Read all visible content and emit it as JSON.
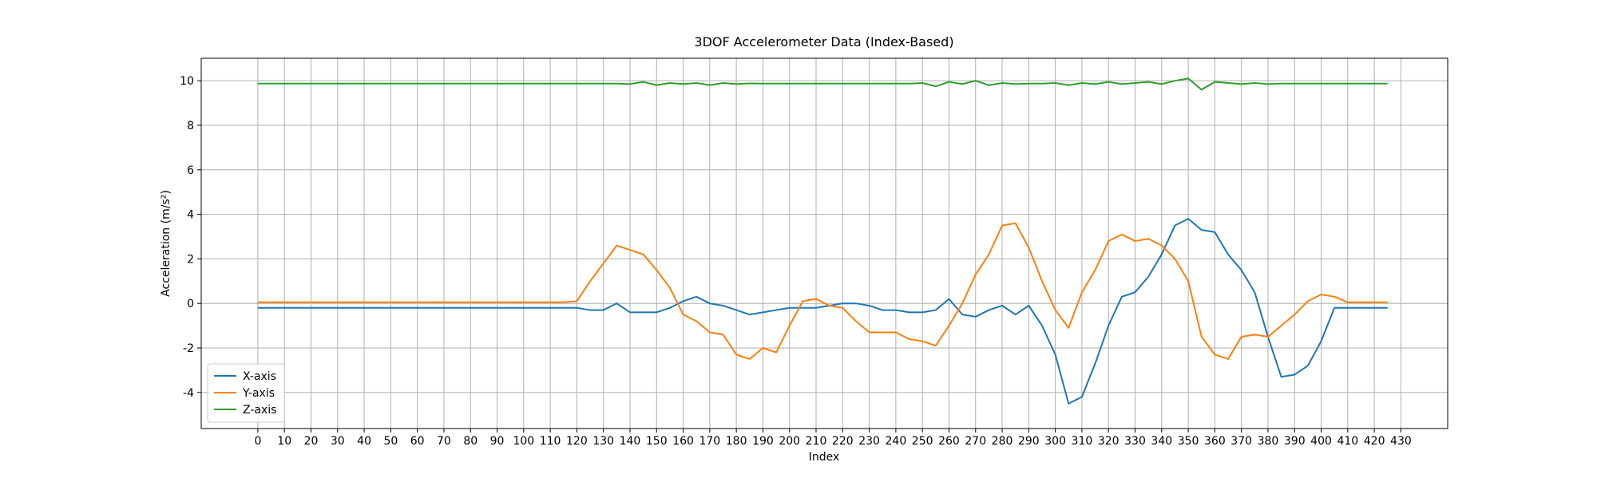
{
  "chart_data": {
    "type": "line",
    "title": "3DOF Accelerometer Data (Index-Based)",
    "x_label": "Index",
    "y_label": "Acceleration (m/s²)",
    "x": [
      0,
      5,
      10,
      15,
      20,
      25,
      30,
      35,
      40,
      45,
      50,
      55,
      60,
      65,
      70,
      75,
      80,
      85,
      90,
      95,
      100,
      105,
      110,
      115,
      120,
      125,
      130,
      135,
      140,
      145,
      150,
      155,
      160,
      165,
      170,
      175,
      180,
      185,
      190,
      195,
      200,
      205,
      210,
      215,
      220,
      225,
      230,
      235,
      240,
      245,
      250,
      255,
      260,
      265,
      270,
      275,
      280,
      285,
      290,
      295,
      300,
      305,
      310,
      315,
      320,
      325,
      330,
      335,
      340,
      345,
      350,
      355,
      360,
      365,
      370,
      375,
      380,
      385,
      390,
      395,
      400,
      405,
      410,
      415,
      420,
      425
    ],
    "series": [
      {
        "name": "X-axis",
        "color": "#1f77b4",
        "values": [
          -0.2,
          -0.2,
          -0.2,
          -0.2,
          -0.2,
          -0.2,
          -0.2,
          -0.2,
          -0.2,
          -0.2,
          -0.2,
          -0.2,
          -0.2,
          -0.2,
          -0.2,
          -0.2,
          -0.2,
          -0.2,
          -0.2,
          -0.2,
          -0.2,
          -0.2,
          -0.2,
          -0.2,
          -0.2,
          -0.3,
          -0.3,
          0.0,
          -0.4,
          -0.4,
          -0.4,
          -0.2,
          0.1,
          0.3,
          0.0,
          -0.1,
          -0.3,
          -0.5,
          -0.4,
          -0.3,
          -0.2,
          -0.2,
          -0.2,
          -0.1,
          0.0,
          0.0,
          -0.1,
          -0.3,
          -0.3,
          -0.4,
          -0.4,
          -0.3,
          0.2,
          -0.5,
          -0.6,
          -0.3,
          -0.1,
          -0.5,
          -0.1,
          -1.0,
          -2.3,
          -4.5,
          -4.2,
          -2.7,
          -1.0,
          0.3,
          0.5,
          1.2,
          2.2,
          3.5,
          3.8,
          3.3,
          3.2,
          2.2,
          1.5,
          0.5,
          -1.5,
          -3.3,
          -3.2,
          -2.8,
          -1.7,
          -0.2,
          -0.2,
          -0.2,
          -0.2,
          -0.2
        ]
      },
      {
        "name": "Y-axis",
        "color": "#ff7f0e",
        "values": [
          0.05,
          0.05,
          0.05,
          0.05,
          0.05,
          0.05,
          0.05,
          0.05,
          0.05,
          0.05,
          0.05,
          0.05,
          0.05,
          0.05,
          0.05,
          0.05,
          0.05,
          0.05,
          0.05,
          0.05,
          0.05,
          0.05,
          0.05,
          0.05,
          0.1,
          1.0,
          1.8,
          2.6,
          2.4,
          2.2,
          1.5,
          0.7,
          -0.5,
          -0.8,
          -1.3,
          -1.4,
          -2.3,
          -2.5,
          -2.0,
          -2.2,
          -1.0,
          0.1,
          0.2,
          -0.1,
          -0.2,
          -0.8,
          -1.3,
          -1.3,
          -1.3,
          -1.6,
          -1.7,
          -1.9,
          -1.0,
          0.0,
          1.3,
          2.2,
          3.5,
          3.6,
          2.5,
          1.0,
          -0.3,
          -1.1,
          0.5,
          1.5,
          2.8,
          3.1,
          2.8,
          2.9,
          2.6,
          2.0,
          1.0,
          -1.5,
          -2.3,
          -2.5,
          -1.5,
          -1.4,
          -1.5,
          -1.0,
          -0.5,
          0.1,
          0.4,
          0.3,
          0.05,
          0.05,
          0.05,
          0.05
        ]
      },
      {
        "name": "Z-axis",
        "color": "#2ca02c",
        "values": [
          9.87,
          9.87,
          9.87,
          9.87,
          9.87,
          9.87,
          9.87,
          9.87,
          9.87,
          9.87,
          9.87,
          9.87,
          9.87,
          9.87,
          9.87,
          9.87,
          9.87,
          9.87,
          9.87,
          9.87,
          9.87,
          9.87,
          9.87,
          9.87,
          9.87,
          9.87,
          9.87,
          9.87,
          9.85,
          9.95,
          9.8,
          9.9,
          9.85,
          9.9,
          9.8,
          9.9,
          9.85,
          9.88,
          9.87,
          9.87,
          9.87,
          9.87,
          9.87,
          9.87,
          9.87,
          9.87,
          9.87,
          9.87,
          9.87,
          9.87,
          9.9,
          9.75,
          9.95,
          9.85,
          10.0,
          9.8,
          9.9,
          9.85,
          9.87,
          9.87,
          9.9,
          9.8,
          9.9,
          9.85,
          9.95,
          9.85,
          9.9,
          9.95,
          9.85,
          10.0,
          10.1,
          9.6,
          9.95,
          9.9,
          9.85,
          9.9,
          9.85,
          9.87,
          9.87,
          9.87,
          9.87,
          9.87,
          9.87,
          9.87,
          9.87,
          9.87
        ]
      }
    ],
    "xlim": [
      -21.3,
      447.6
    ],
    "ylim": [
      -5.62,
      11.01
    ],
    "xticks": [
      0,
      10,
      20,
      30,
      40,
      50,
      60,
      70,
      80,
      90,
      100,
      110,
      120,
      130,
      140,
      150,
      160,
      170,
      180,
      190,
      200,
      210,
      220,
      230,
      240,
      250,
      260,
      270,
      280,
      290,
      300,
      310,
      320,
      330,
      340,
      350,
      360,
      370,
      380,
      390,
      400,
      410,
      420,
      430
    ],
    "yticks": [
      -4,
      -2,
      0,
      2,
      4,
      6,
      8,
      10
    ],
    "grid": true,
    "legend": "lower left"
  }
}
